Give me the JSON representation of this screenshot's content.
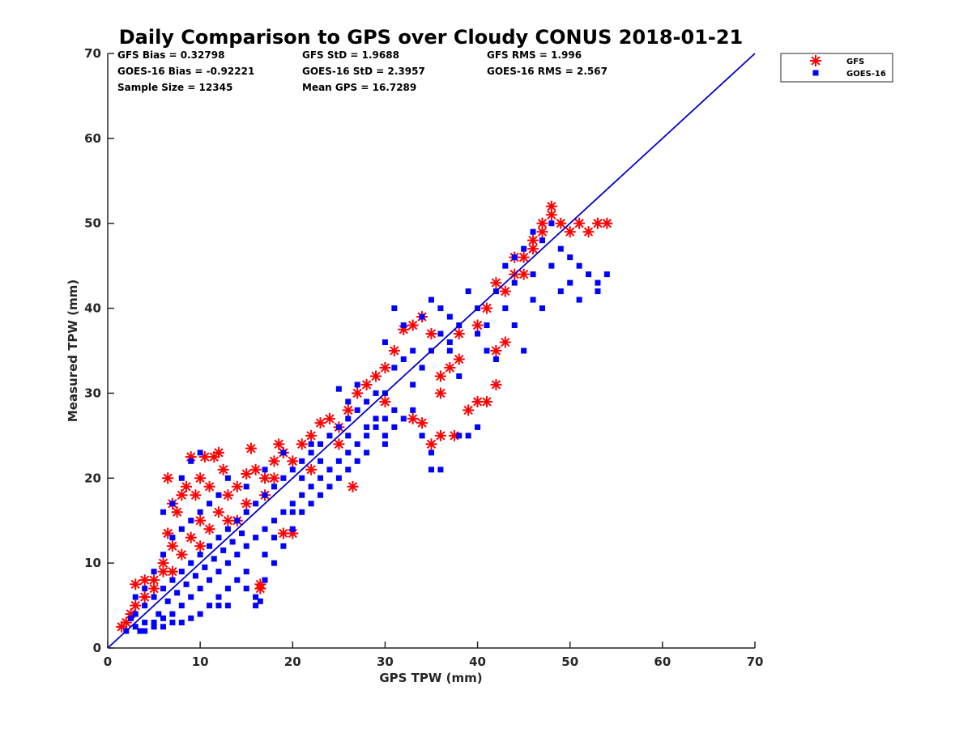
{
  "chart_data": {
    "type": "scatter",
    "title": "Daily Comparison to GPS over Cloudy CONUS 2018-01-21",
    "xlabel": "GPS TPW (mm)",
    "ylabel": "Measured TPW (mm)",
    "xlim": [
      0,
      70
    ],
    "ylim": [
      0,
      70
    ],
    "xticks": [
      "0",
      "10",
      "20",
      "30",
      "40",
      "50",
      "60",
      "70"
    ],
    "yticks": [
      "0",
      "10",
      "20",
      "30",
      "40",
      "50",
      "60",
      "70"
    ],
    "grid": false,
    "legend_position": "outside-top-right",
    "annotations": [
      "GFS Bias = 0.32798",
      "GFS StD = 1.9688",
      "GFS RMS = 1.996",
      "GOES-16 Bias = -0.92221",
      "GOES-16 StD = 2.3957",
      "GOES-16 RMS = 2.567",
      "Sample Size = 12345",
      "Mean GPS = 16.7289"
    ],
    "reference_line": {
      "x": [
        0,
        70
      ],
      "y": [
        0,
        70
      ],
      "color": "#0000cc"
    },
    "series": [
      {
        "name": "GFS",
        "marker": "asterisk",
        "color": "#ff0000",
        "points": [
          [
            1.5,
            2.5
          ],
          [
            2,
            3
          ],
          [
            2.5,
            4
          ],
          [
            3,
            5
          ],
          [
            3,
            7.5
          ],
          [
            4,
            8
          ],
          [
            5,
            8
          ],
          [
            4,
            6
          ],
          [
            5,
            7
          ],
          [
            6,
            9
          ],
          [
            6,
            10
          ],
          [
            7,
            12
          ],
          [
            6.5,
            13.5
          ],
          [
            7,
            17
          ],
          [
            6.5,
            20
          ],
          [
            7.5,
            16
          ],
          [
            8,
            18
          ],
          [
            8.5,
            19
          ],
          [
            9,
            22.5
          ],
          [
            9.5,
            18
          ],
          [
            10,
            20
          ],
          [
            10.5,
            22.5
          ],
          [
            11,
            19
          ],
          [
            11.5,
            22.5
          ],
          [
            12,
            23
          ],
          [
            12.5,
            21
          ],
          [
            13,
            18
          ],
          [
            14,
            19
          ],
          [
            15,
            20.5
          ],
          [
            15.5,
            23.5
          ],
          [
            16,
            21
          ],
          [
            17,
            20
          ],
          [
            18,
            22
          ],
          [
            18.5,
            24
          ],
          [
            19,
            13.5
          ],
          [
            20,
            13.5
          ],
          [
            16.5,
            7
          ],
          [
            16.5,
            7.5
          ],
          [
            10,
            15
          ],
          [
            11,
            14
          ],
          [
            12,
            16
          ],
          [
            13,
            15
          ],
          [
            14,
            15
          ],
          [
            9,
            13
          ],
          [
            10,
            12
          ],
          [
            8,
            11
          ],
          [
            7,
            9
          ],
          [
            18,
            20
          ],
          [
            20,
            22
          ],
          [
            22,
            25
          ],
          [
            23,
            26.5
          ],
          [
            24,
            27
          ],
          [
            25,
            26
          ],
          [
            26,
            28
          ],
          [
            26.5,
            19
          ],
          [
            27,
            30
          ],
          [
            28,
            31
          ],
          [
            29,
            32
          ],
          [
            30,
            33
          ],
          [
            31,
            35
          ],
          [
            32,
            37.5
          ],
          [
            33,
            38
          ],
          [
            34,
            39
          ],
          [
            35,
            37
          ],
          [
            36,
            32
          ],
          [
            37,
            33
          ],
          [
            33,
            27
          ],
          [
            34,
            26.5
          ],
          [
            35,
            24
          ],
          [
            36,
            25
          ],
          [
            37.5,
            25
          ],
          [
            36,
            30
          ],
          [
            38,
            34
          ],
          [
            39,
            28
          ],
          [
            40,
            29
          ],
          [
            41,
            29
          ],
          [
            42,
            31
          ],
          [
            42,
            35
          ],
          [
            43,
            36
          ],
          [
            40,
            38
          ],
          [
            41,
            40
          ],
          [
            43,
            42
          ],
          [
            44,
            44
          ],
          [
            45,
            46
          ],
          [
            46,
            48
          ],
          [
            47,
            50
          ],
          [
            48,
            51
          ],
          [
            49,
            50
          ],
          [
            50,
            49
          ],
          [
            51,
            50
          ],
          [
            52,
            49
          ],
          [
            53,
            50
          ],
          [
            54,
            50
          ],
          [
            47,
            49
          ],
          [
            48,
            52
          ],
          [
            46,
            47
          ],
          [
            45,
            44
          ],
          [
            44,
            46
          ],
          [
            42,
            43
          ],
          [
            38,
            37
          ],
          [
            30,
            29
          ],
          [
            25,
            24
          ],
          [
            22,
            21
          ],
          [
            21,
            24
          ],
          [
            19,
            23
          ],
          [
            17,
            18
          ],
          [
            15,
            17
          ]
        ]
      },
      {
        "name": "GOES-16",
        "marker": "square",
        "color": "#0000ff",
        "points": [
          [
            2,
            2
          ],
          [
            3,
            2.5
          ],
          [
            4,
            3
          ],
          [
            5,
            3
          ],
          [
            6,
            3.5
          ],
          [
            7,
            4
          ],
          [
            8,
            5
          ],
          [
            9,
            6
          ],
          [
            10,
            7
          ],
          [
            11,
            8
          ],
          [
            12,
            9
          ],
          [
            13,
            10
          ],
          [
            14,
            11
          ],
          [
            15,
            12
          ],
          [
            16,
            13
          ],
          [
            17,
            14
          ],
          [
            18,
            15
          ],
          [
            19,
            16
          ],
          [
            20,
            17
          ],
          [
            21,
            18
          ],
          [
            22,
            19
          ],
          [
            23,
            20
          ],
          [
            24,
            21
          ],
          [
            25,
            22
          ],
          [
            26,
            23
          ],
          [
            27,
            24
          ],
          [
            28,
            25
          ],
          [
            29,
            26
          ],
          [
            30,
            27
          ],
          [
            3,
            4
          ],
          [
            4,
            5
          ],
          [
            5,
            6
          ],
          [
            6,
            7
          ],
          [
            7,
            8
          ],
          [
            8,
            9
          ],
          [
            9,
            10
          ],
          [
            10,
            11
          ],
          [
            11,
            12
          ],
          [
            12,
            13
          ],
          [
            13,
            14
          ],
          [
            14,
            15
          ],
          [
            15,
            16
          ],
          [
            16,
            17
          ],
          [
            17,
            18
          ],
          [
            18,
            19
          ],
          [
            19,
            20
          ],
          [
            20,
            21
          ],
          [
            21,
            22
          ],
          [
            22,
            23
          ],
          [
            23,
            24
          ],
          [
            24,
            25
          ],
          [
            25,
            26
          ],
          [
            26,
            27
          ],
          [
            27,
            28
          ],
          [
            28,
            29
          ],
          [
            29,
            30
          ],
          [
            3,
            6
          ],
          [
            4,
            7
          ],
          [
            5,
            9
          ],
          [
            6,
            11
          ],
          [
            7,
            13
          ],
          [
            8,
            14
          ],
          [
            9,
            15
          ],
          [
            10,
            16
          ],
          [
            11,
            17
          ],
          [
            12,
            18
          ],
          [
            6,
            16
          ],
          [
            7,
            17
          ],
          [
            8,
            20
          ],
          [
            9,
            22
          ],
          [
            10,
            23
          ],
          [
            13,
            20
          ],
          [
            15,
            19
          ],
          [
            17,
            21
          ],
          [
            19,
            23
          ],
          [
            4,
            2
          ],
          [
            5,
            2.5
          ],
          [
            6,
            2.5
          ],
          [
            7,
            3
          ],
          [
            8,
            3
          ],
          [
            9,
            3.5
          ],
          [
            10,
            4
          ],
          [
            11,
            5
          ],
          [
            12,
            6
          ],
          [
            13,
            7
          ],
          [
            14,
            8
          ],
          [
            15,
            9
          ],
          [
            16,
            5
          ],
          [
            16,
            6
          ],
          [
            17,
            8
          ],
          [
            18,
            10
          ],
          [
            19,
            12
          ],
          [
            20,
            14
          ],
          [
            21,
            16
          ],
          [
            22,
            17
          ],
          [
            23,
            18
          ],
          [
            24,
            19
          ],
          [
            25,
            20
          ],
          [
            26,
            21
          ],
          [
            27,
            22
          ],
          [
            28,
            23
          ],
          [
            30,
            24
          ],
          [
            31,
            26
          ],
          [
            32,
            27
          ],
          [
            33,
            28
          ],
          [
            34,
            25
          ],
          [
            35,
            23
          ],
          [
            36,
            21
          ],
          [
            35,
            21
          ],
          [
            38,
            25
          ],
          [
            39,
            25
          ],
          [
            40,
            26
          ],
          [
            30,
            36
          ],
          [
            31,
            40
          ],
          [
            32,
            38
          ],
          [
            34,
            39
          ],
          [
            35,
            41
          ],
          [
            36,
            40
          ],
          [
            37,
            39
          ],
          [
            38,
            38
          ],
          [
            39,
            42
          ],
          [
            40,
            37
          ],
          [
            41,
            35
          ],
          [
            42,
            34
          ],
          [
            43,
            45
          ],
          [
            44,
            46
          ],
          [
            45,
            47
          ],
          [
            46,
            49
          ],
          [
            47,
            48
          ],
          [
            48,
            50
          ],
          [
            49,
            47
          ],
          [
            50,
            46
          ],
          [
            51,
            45
          ],
          [
            52,
            44
          ],
          [
            53,
            43
          ],
          [
            54,
            44
          ],
          [
            46,
            41
          ],
          [
            47,
            40
          ],
          [
            49,
            42
          ],
          [
            45,
            35
          ],
          [
            44,
            38
          ],
          [
            42,
            42
          ],
          [
            48,
            45
          ],
          [
            50,
            43
          ],
          [
            51,
            41
          ],
          [
            53,
            42
          ],
          [
            38,
            32
          ],
          [
            37,
            35
          ],
          [
            36,
            37
          ],
          [
            34,
            33
          ],
          [
            33,
            31
          ],
          [
            32,
            34
          ],
          [
            29,
            27
          ],
          [
            26,
            29
          ],
          [
            27,
            31
          ],
          [
            25,
            30.5
          ],
          [
            30,
            25
          ],
          [
            31,
            28
          ],
          [
            21,
            20
          ],
          [
            22,
            24
          ],
          [
            2.5,
            3.5
          ],
          [
            3.5,
            2
          ],
          [
            5.5,
            4
          ],
          [
            6.5,
            5.5
          ],
          [
            7.5,
            6.5
          ],
          [
            8.5,
            7.5
          ],
          [
            9.5,
            8.5
          ],
          [
            10.5,
            9.5
          ],
          [
            11.5,
            10.5
          ],
          [
            12.5,
            11.5
          ],
          [
            13.5,
            12.5
          ],
          [
            14.5,
            13.5
          ],
          [
            16.5,
            5.5
          ],
          [
            13,
            5
          ],
          [
            12,
            5
          ],
          [
            15,
            7
          ],
          [
            17,
            11
          ],
          [
            18,
            13
          ],
          [
            20,
            16
          ],
          [
            23,
            22
          ],
          [
            26,
            25
          ],
          [
            28,
            26
          ],
          [
            30,
            30
          ],
          [
            31,
            33
          ],
          [
            33,
            35
          ],
          [
            35,
            35
          ],
          [
            37,
            36
          ],
          [
            40,
            40
          ],
          [
            41,
            38
          ],
          [
            43,
            40
          ],
          [
            44,
            43
          ],
          [
            46,
            44
          ]
        ]
      }
    ]
  }
}
